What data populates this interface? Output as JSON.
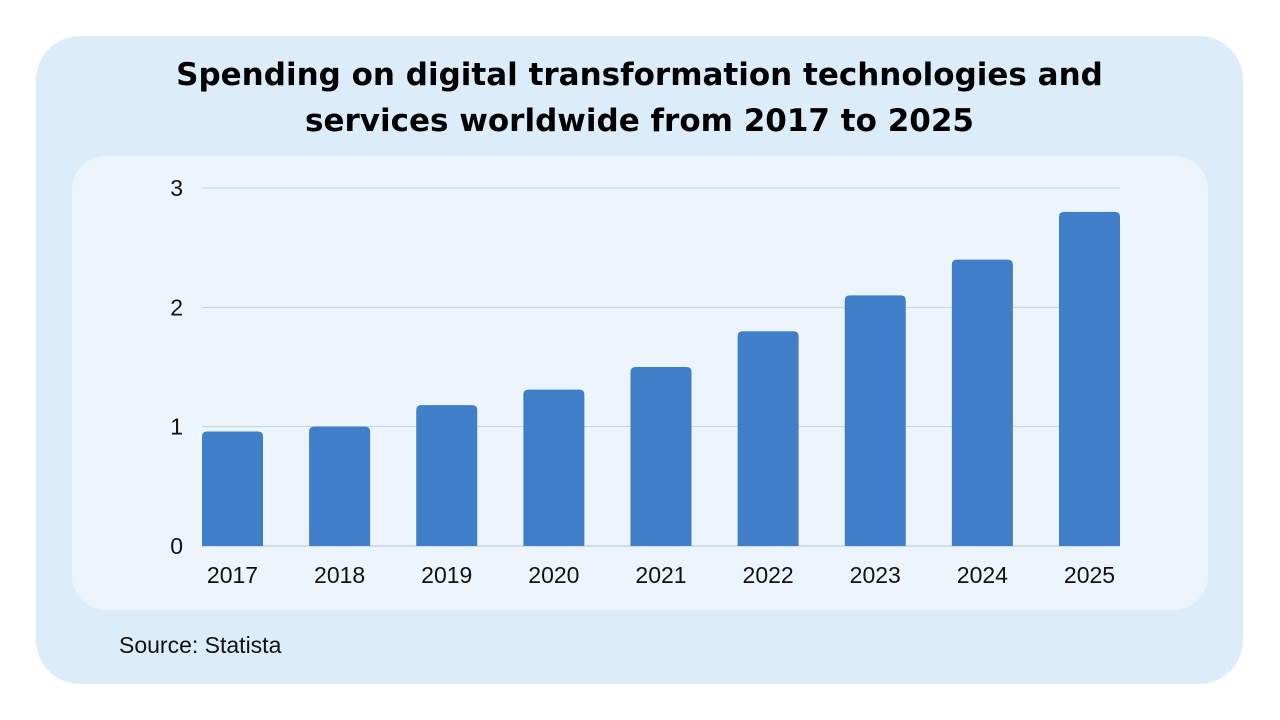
{
  "chart_data": {
    "type": "bar",
    "title": "Spending on digital transformation technologies and services worldwide from 2017 to 2025",
    "title_lines": [
      "Spending on digital transformation technologies and",
      "services worldwide from 2017 to 2025"
    ],
    "categories": [
      "2017",
      "2018",
      "2019",
      "2020",
      "2021",
      "2022",
      "2023",
      "2024",
      "2025"
    ],
    "values": [
      0.96,
      1.0,
      1.18,
      1.31,
      1.5,
      1.8,
      2.1,
      2.4,
      2.8
    ],
    "xlabel": "",
    "ylabel": "",
    "ylim": [
      0,
      3
    ],
    "yticks": [
      "0",
      "1",
      "2",
      "3"
    ],
    "grid": true,
    "legend": "none",
    "bar_color": "#3f7ec9",
    "grid_color": "#c5d0dc",
    "source": "Source: Statista"
  }
}
